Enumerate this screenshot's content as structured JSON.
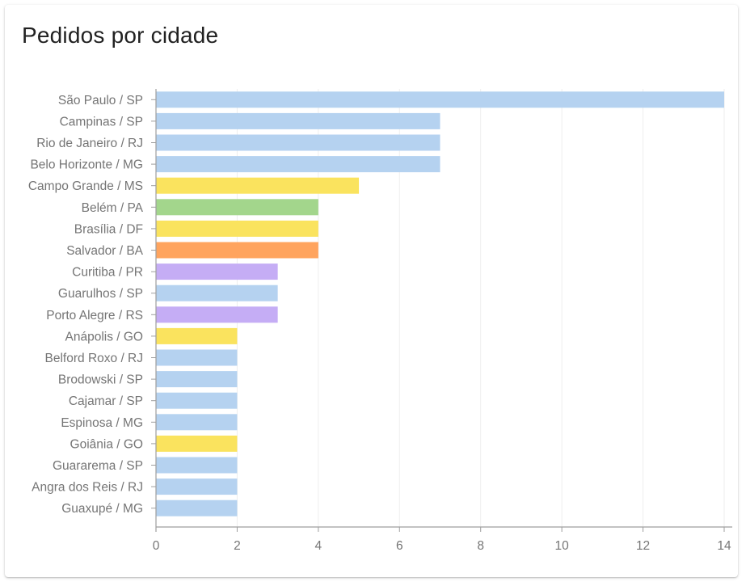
{
  "card": {
    "title": "Pedidos por cidade"
  },
  "colors": {
    "blue": "#b5d2f0",
    "yellow": "#fae35e",
    "green": "#a3d68c",
    "orange": "#ffa45e",
    "purple": "#c5adf5",
    "grid": "#eeeeee",
    "axis": "#9e9e9e",
    "label": "#757575"
  },
  "chart_data": {
    "type": "bar",
    "orientation": "horizontal",
    "title": "Pedidos por cidade",
    "xlabel": "",
    "ylabel": "",
    "xlim": [
      0,
      14
    ],
    "xticks": [
      0,
      2,
      4,
      6,
      8,
      10,
      12,
      14
    ],
    "grid": true,
    "categories": [
      "São Paulo / SP",
      "Campinas / SP",
      "Rio de Janeiro / RJ",
      "Belo Horizonte / MG",
      "Campo Grande / MS",
      "Belém / PA",
      "Brasília / DF",
      "Salvador / BA",
      "Curitiba / PR",
      "Guarulhos / SP",
      "Porto Alegre / RS",
      "Anápolis / GO",
      "Belford Roxo / RJ",
      "Brodowski / SP",
      "Cajamar / SP",
      "Espinosa / MG",
      "Goiânia / GO",
      "Guararema / SP",
      "Angra dos Reis / RJ",
      "Guaxupé / MG"
    ],
    "values": [
      14,
      7,
      7,
      7,
      5,
      4,
      4,
      4,
      3,
      3,
      3,
      2,
      2,
      2,
      2,
      2,
      2,
      2,
      2,
      2
    ],
    "bar_colors": [
      "#b5d2f0",
      "#b5d2f0",
      "#b5d2f0",
      "#b5d2f0",
      "#fae35e",
      "#a3d68c",
      "#fae35e",
      "#ffa45e",
      "#c5adf5",
      "#b5d2f0",
      "#c5adf5",
      "#fae35e",
      "#b5d2f0",
      "#b5d2f0",
      "#b5d2f0",
      "#b5d2f0",
      "#fae35e",
      "#b5d2f0",
      "#b5d2f0",
      "#b5d2f0"
    ]
  }
}
